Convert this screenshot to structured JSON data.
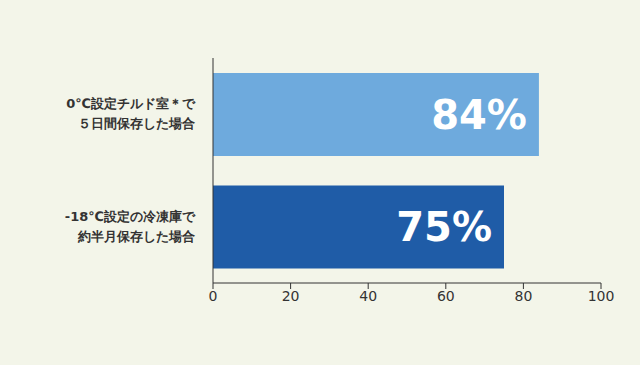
{
  "chart_data": {
    "type": "bar",
    "orientation": "horizontal",
    "categories": [
      "0℃設定チルド室＊で\n５日間保存した場合",
      "-18℃設定の冷凍庫で\n約半月保存した場合"
    ],
    "values": [
      84,
      75
    ],
    "value_labels": [
      "84%",
      "75%"
    ],
    "colors": [
      "#6eaadd",
      "#1f5ca7"
    ],
    "xlim": [
      0,
      100
    ],
    "xticks": [
      0,
      20,
      40,
      60,
      80,
      100
    ],
    "data_labels": true,
    "grid": false
  }
}
